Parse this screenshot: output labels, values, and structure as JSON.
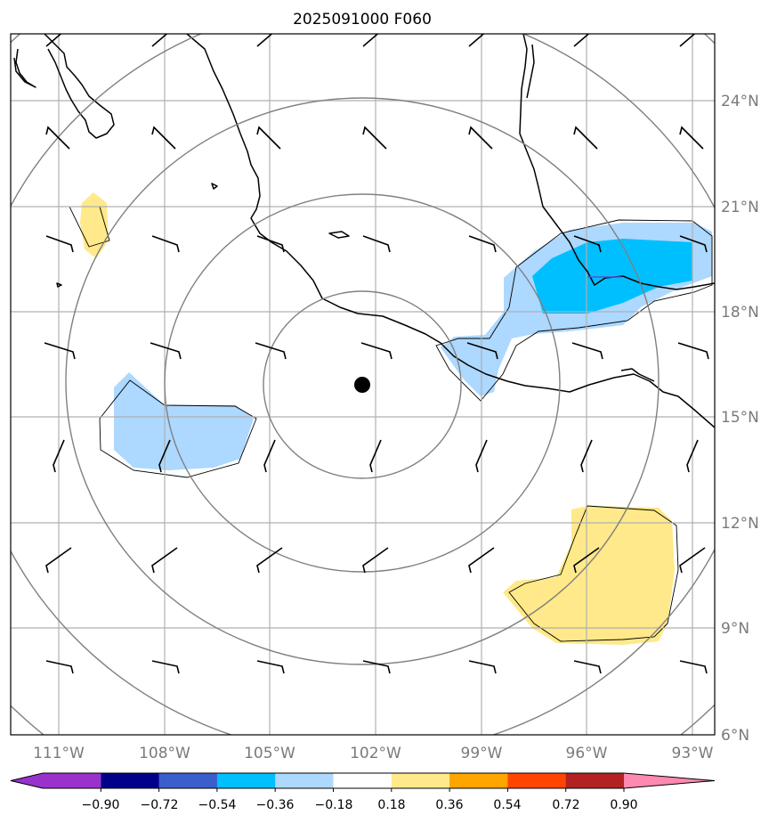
{
  "title": "2025091000 F060",
  "lat_labels": [
    "24°N",
    "21°N",
    "18°N",
    "15°N",
    "12°N",
    "9°N",
    "6°N"
  ],
  "lon_labels": [
    "111°W",
    "108°W",
    "105°W",
    "102°W",
    "99°W",
    "96°W",
    "93°W"
  ],
  "colorbar": {
    "colors": [
      "#9932cc",
      "#00008b",
      "#3a5fcd",
      "#00bfff",
      "#add8ff",
      "#ffffff",
      "#ffe98a",
      "#ffa500",
      "#ff4500",
      "#b22222",
      "#ff89b0"
    ],
    "tick_labels": [
      "−0.90",
      "−0.72",
      "−0.54",
      "−0.36",
      "−0.18",
      "0.18",
      "0.36",
      "0.54",
      "0.72",
      "0.90"
    ]
  },
  "center_marker": {
    "lat": 15.9,
    "lon": -102.4
  },
  "colors": {
    "coast": "#000000",
    "grid": "#b0b0b0",
    "range_ring": "#808080",
    "light_blue": "#add8ff",
    "blue": "#00bfff",
    "yellow": "#ffe98a"
  }
}
